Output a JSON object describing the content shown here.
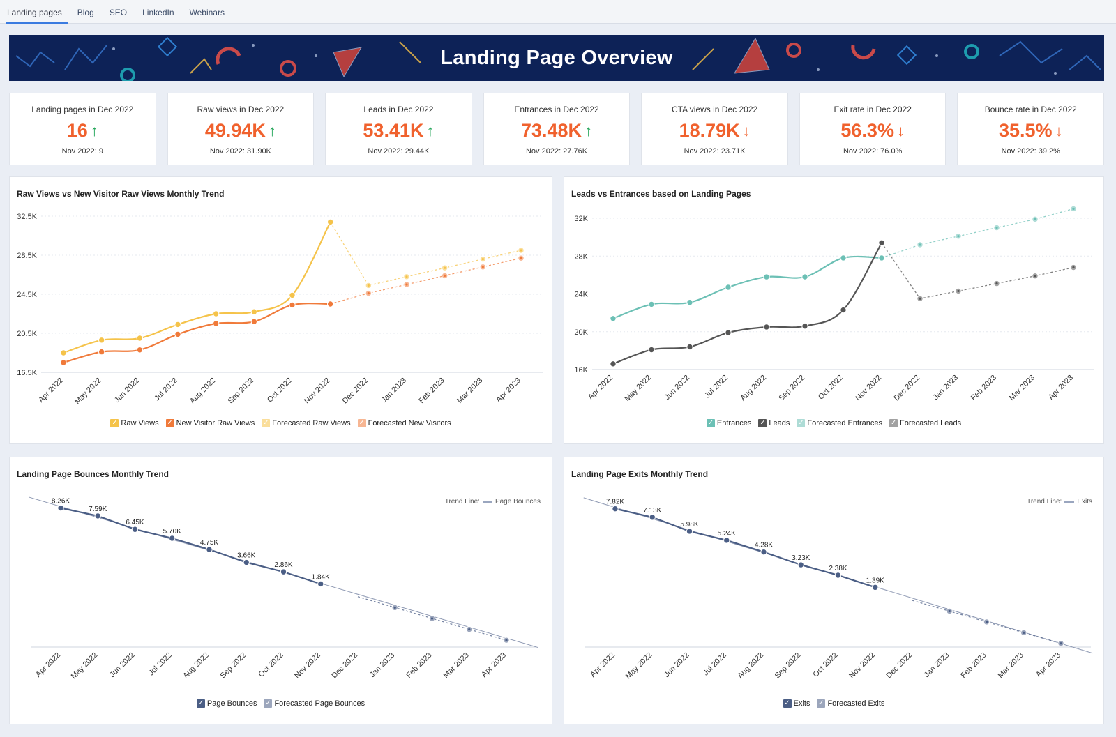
{
  "tabs": [
    {
      "label": "Landing pages",
      "active": true
    },
    {
      "label": "Blog"
    },
    {
      "label": "SEO"
    },
    {
      "label": "LinkedIn"
    },
    {
      "label": "Webinars"
    }
  ],
  "banner": {
    "title": "Landing Page Overview"
  },
  "kpis": [
    {
      "title": "Landing pages in Dec 2022",
      "value": "16",
      "trend": "up",
      "prev": "Nov 2022: 9"
    },
    {
      "title": "Raw views in Dec 2022",
      "value": "49.94K",
      "trend": "up",
      "prev": "Nov 2022: 31.90K"
    },
    {
      "title": "Leads in Dec 2022",
      "value": "53.41K",
      "trend": "up",
      "prev": "Nov 2022: 29.44K"
    },
    {
      "title": "Entrances in Dec 2022",
      "value": "73.48K",
      "trend": "up",
      "prev": "Nov 2022: 27.76K"
    },
    {
      "title": "CTA views in Dec 2022",
      "value": "18.79K",
      "trend": "down",
      "prev": "Nov 2022: 23.71K"
    },
    {
      "title": "Exit rate in Dec 2022",
      "value": "56.3%",
      "trend": "down",
      "prev": "Nov 2022: 76.0%"
    },
    {
      "title": "Bounce rate in Dec 2022",
      "value": "35.5%",
      "trend": "down",
      "prev": "Nov 2022: 39.2%"
    }
  ],
  "colors": {
    "raw": "#f5c34a",
    "newVisitor": "#f07a3a",
    "entrances": "#6cc0b5",
    "leads": "#555555",
    "bounce": "#4b5e85",
    "kpiValue": "#f0612d",
    "up": "#26a65b",
    "banner": "#0d2257"
  },
  "chart_data": [
    {
      "type": "line",
      "title": "Raw Views vs New Visitor Raw Views Monthly Trend",
      "categories": [
        "Apr 2022",
        "May 2022",
        "Jun 2022",
        "Jul 2022",
        "Aug 2022",
        "Sep 2022",
        "Oct 2022",
        "Nov 2022",
        "Dec 2022",
        "Jan 2023",
        "Feb 2023",
        "Mar 2023",
        "Apr 2023"
      ],
      "yticks": [
        "16.5K",
        "20.5K",
        "24.5K",
        "28.5K",
        "32.5K"
      ],
      "ylim": [
        16500,
        32500
      ],
      "series": [
        {
          "name": "Raw Views",
          "color": "#f5c34a",
          "x": [
            0,
            1,
            2,
            3,
            4,
            5,
            6,
            7
          ],
          "values": [
            18500,
            19800,
            20000,
            21400,
            22500,
            22700,
            24400,
            31900
          ]
        },
        {
          "name": "New Visitor Raw Views",
          "color": "#f07a3a",
          "x": [
            0,
            1,
            2,
            3,
            4,
            5,
            6,
            7
          ],
          "values": [
            17500,
            18600,
            18800,
            20400,
            21500,
            21700,
            23400,
            23500
          ]
        },
        {
          "name": "Forecasted Raw Views",
          "color": "#f5c34a",
          "forecast": true,
          "x": [
            7,
            8,
            9,
            10,
            11,
            12
          ],
          "values": [
            31900,
            25400,
            26300,
            27200,
            28100,
            29000
          ]
        },
        {
          "name": "Forecasted New Visitors",
          "color": "#f07a3a",
          "forecast": true,
          "x": [
            7,
            8,
            9,
            10,
            11,
            12
          ],
          "values": [
            23500,
            24600,
            25500,
            26400,
            27300,
            28200
          ]
        }
      ],
      "legend": "bottom"
    },
    {
      "type": "line",
      "title": "Leads vs Entrances based on Landing Pages",
      "categories": [
        "Apr 2022",
        "May 2022",
        "Jun 2022",
        "Jul 2022",
        "Aug 2022",
        "Sep 2022",
        "Oct 2022",
        "Nov 2022",
        "Dec 2022",
        "Jan 2023",
        "Feb 2023",
        "Mar 2023",
        "Apr 2023"
      ],
      "yticks": [
        "16K",
        "20K",
        "24K",
        "28K",
        "32K"
      ],
      "ylim": [
        16000,
        32000
      ],
      "series": [
        {
          "name": "Entrances",
          "color": "#6cc0b5",
          "x": [
            0,
            1,
            2,
            3,
            4,
            5,
            6,
            7
          ],
          "values": [
            21400,
            22900,
            23100,
            24700,
            25800,
            25800,
            27800,
            27800
          ]
        },
        {
          "name": "Leads",
          "color": "#555555",
          "x": [
            0,
            1,
            2,
            3,
            4,
            5,
            6,
            7
          ],
          "values": [
            16600,
            18100,
            18400,
            19900,
            20500,
            20600,
            22300,
            29400
          ]
        },
        {
          "name": "Forecasted Entrances",
          "color": "#6cc0b5",
          "forecast": true,
          "x": [
            7,
            8,
            9,
            10,
            11,
            12
          ],
          "values": [
            27800,
            29200,
            30100,
            31000,
            31900,
            33000
          ]
        },
        {
          "name": "Forecasted Leads",
          "color": "#555555",
          "forecast": true,
          "x": [
            7,
            8,
            9,
            10,
            11,
            12
          ],
          "values": [
            29400,
            23500,
            24300,
            25100,
            25900,
            26800
          ]
        }
      ],
      "legend": "bottom"
    },
    {
      "type": "line",
      "title": "Landing Page Bounces Monthly Trend",
      "categories": [
        "Apr 2022",
        "May 2022",
        "Jun 2022",
        "Jul 2022",
        "Aug 2022",
        "Sep 2022",
        "Oct 2022",
        "Nov 2022",
        "Dec 2022",
        "Jan 2023",
        "Feb 2023",
        "Mar 2023",
        "Apr 2023"
      ],
      "ylim": [
        -3500,
        9000
      ],
      "trendLabel": "Trend Line:",
      "trendName": "Page Bounces",
      "series": [
        {
          "name": "Page Bounces",
          "color": "#4b5e85",
          "x": [
            0,
            1,
            2,
            3,
            4,
            5,
            6,
            7
          ],
          "values": [
            8260,
            7590,
            6450,
            5700,
            4750,
            3660,
            2860,
            1840
          ],
          "labels": [
            "8.26K",
            "7.59K",
            "6.45K",
            "5.70K",
            "4.75K",
            "3.66K",
            "2.86K",
            "1.84K"
          ]
        },
        {
          "name": "Forecasted Page Bounces",
          "color": "#4b5e85",
          "forecast": true,
          "x": [
            8,
            9,
            10,
            11,
            12
          ],
          "values": [
            760,
            -160,
            -1080,
            -2000,
            -2920
          ]
        }
      ],
      "legend": "bottom"
    },
    {
      "type": "line",
      "title": "Landing Page Exits Monthly Trend",
      "categories": [
        "Apr 2022",
        "May 2022",
        "Jun 2022",
        "Jul 2022",
        "Aug 2022",
        "Sep 2022",
        "Oct 2022",
        "Nov 2022",
        "Dec 2022",
        "Jan 2023",
        "Feb 2023",
        "Mar 2023",
        "Apr 2023"
      ],
      "ylim": [
        -3500,
        8600
      ],
      "trendLabel": "Trend Line:",
      "trendName": "Exits",
      "series": [
        {
          "name": "Exits",
          "color": "#4b5e85",
          "x": [
            0,
            1,
            2,
            3,
            4,
            5,
            6,
            7
          ],
          "values": [
            7820,
            7130,
            5980,
            5240,
            4280,
            3230,
            2380,
            1390
          ],
          "labels": [
            "7.82K",
            "7.13K",
            "5.98K",
            "5.24K",
            "4.28K",
            "3.23K",
            "2.38K",
            "1.39K"
          ]
        },
        {
          "name": "Forecasted Exits",
          "color": "#4b5e85",
          "forecast": true,
          "x": [
            8,
            9,
            10,
            11,
            12
          ],
          "values": [
            320,
            -560,
            -1440,
            -2320,
            -3200
          ]
        }
      ],
      "legend": "bottom"
    }
  ]
}
